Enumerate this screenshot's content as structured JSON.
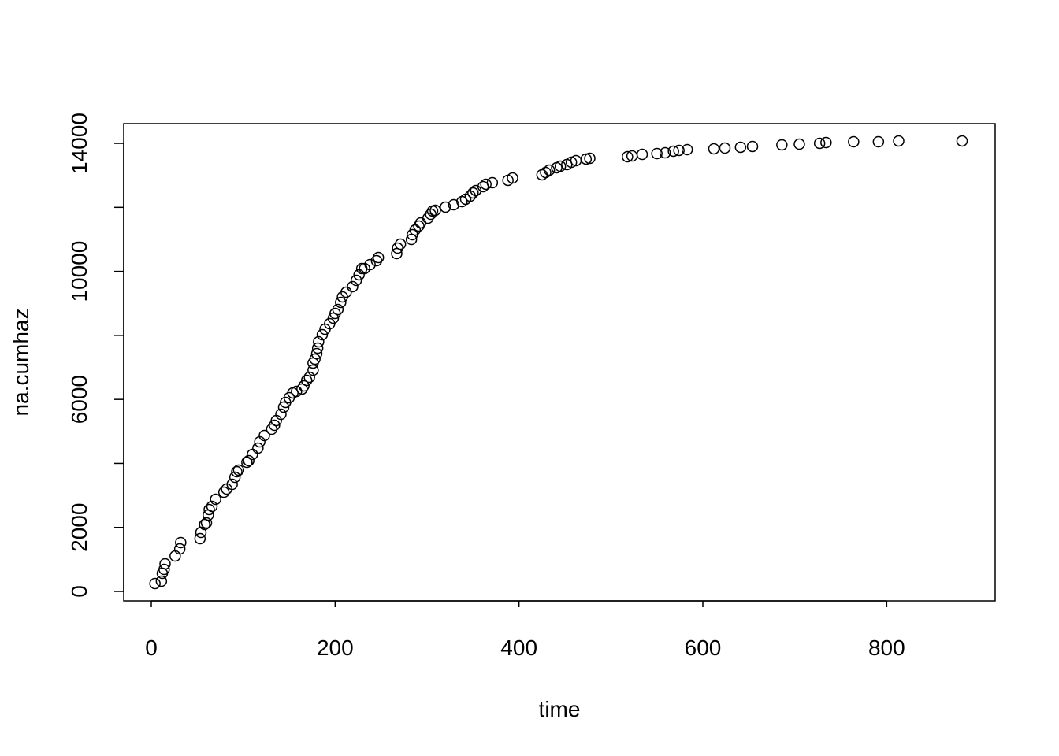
{
  "chart_data": {
    "type": "scatter",
    "xlabel": "time",
    "ylabel": "na.cumhaz",
    "color": "#000000",
    "x": [
      4,
      11,
      12,
      14,
      15,
      26,
      31,
      32,
      53,
      54,
      58,
      60,
      62,
      63,
      66,
      70,
      79,
      82,
      88,
      91,
      93,
      95,
      104,
      106,
      110,
      116,
      118,
      123,
      131,
      134,
      136,
      141,
      144,
      146,
      150,
      154,
      158,
      164,
      166,
      169,
      172,
      176,
      176,
      178,
      180,
      181,
      182,
      186,
      189,
      194,
      198,
      200,
      203,
      206,
      208,
      212,
      219,
      223,
      226,
      229,
      232,
      238,
      245,
      247,
      267,
      268,
      271,
      283,
      284,
      287,
      291,
      293,
      301,
      304,
      306,
      309,
      320,
      329,
      338,
      342,
      347,
      350,
      353,
      361,
      364,
      371,
      388,
      393,
      425,
      429,
      433,
      441,
      445,
      452,
      457,
      462,
      473,
      477,
      518,
      523,
      534,
      550,
      559,
      568,
      574,
      583,
      612,
      624,
      641,
      654,
      686,
      705,
      727,
      734,
      764,
      791,
      813,
      882
    ],
    "values": [
      246,
      320,
      566,
      689,
      861,
      1107,
      1329,
      1526,
      1649,
      1845,
      2092,
      2141,
      2387,
      2559,
      2657,
      2879,
      3100,
      3199,
      3346,
      3568,
      3740,
      3789,
      4035,
      4085,
      4281,
      4478,
      4675,
      4872,
      5069,
      5192,
      5339,
      5536,
      5758,
      5906,
      6053,
      6201,
      6250,
      6324,
      6422,
      6594,
      6693,
      6914,
      7136,
      7259,
      7431,
      7603,
      7800,
      8022,
      8194,
      8366,
      8538,
      8686,
      8809,
      9031,
      9203,
      9350,
      9523,
      9719,
      9892,
      10089,
      10089,
      10212,
      10335,
      10433,
      10556,
      10728,
      10851,
      10999,
      11146,
      11294,
      11417,
      11516,
      11663,
      11786,
      11885,
      11909,
      12008,
      12082,
      12180,
      12254,
      12352,
      12451,
      12525,
      12648,
      12722,
      12771,
      12845,
      12918,
      13017,
      13091,
      13164,
      13238,
      13287,
      13337,
      13410,
      13460,
      13509,
      13533,
      13583,
      13607,
      13656,
      13681,
      13705,
      13755,
      13780,
      13804,
      13829,
      13853,
      13878,
      13903,
      13952,
      13976,
      14001,
      14025,
      14050,
      14050,
      14075,
      14075
    ],
    "xlim": [
      -30,
      918
    ],
    "ylim": [
      -295,
      14616
    ],
    "xticks": [
      0,
      200,
      400,
      600,
      800
    ],
    "yticks": [
      0,
      2000,
      {
        "value": 4000,
        "label": null
      },
      6000,
      {
        "value": 8000,
        "label": null
      },
      10000,
      {
        "value": 12000,
        "label": null
      },
      14000
    ]
  }
}
